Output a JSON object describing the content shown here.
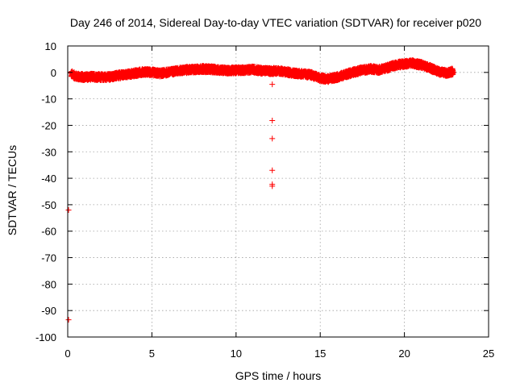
{
  "chart_data": {
    "type": "scatter",
    "title": "Day 246 of 2014, Sidereal Day-to-day VTEC variation (SDTVAR) for receiver p020",
    "xlabel": "GPS time / hours",
    "ylabel": "SDTVAR / TECUs",
    "xlim": [
      0,
      25
    ],
    "ylim": [
      -100,
      10
    ],
    "x_ticks": [
      0,
      5,
      10,
      15,
      20,
      25
    ],
    "y_ticks": [
      10,
      0,
      -10,
      -20,
      -30,
      -40,
      -50,
      -60,
      -70,
      -80,
      -90,
      -100
    ],
    "grid": true,
    "marker": "+",
    "color": "#ff0000",
    "series": [
      {
        "name": "SDTVAR",
        "band": {
          "x": [
            0.2,
            0.5,
            1.0,
            1.5,
            2.0,
            2.5,
            3.0,
            3.5,
            4.0,
            4.5,
            5.0,
            5.5,
            6.0,
            6.5,
            7.0,
            7.5,
            8.0,
            8.5,
            9.0,
            9.5,
            10.0,
            10.5,
            11.0,
            11.5,
            12.0,
            12.5,
            13.0,
            13.5,
            14.0,
            14.5,
            15.0,
            15.5,
            16.0,
            16.5,
            17.0,
            17.5,
            18.0,
            18.5,
            19.0,
            19.5,
            20.0,
            20.5,
            21.0,
            21.5,
            22.0,
            22.5,
            22.9
          ],
          "y_center": [
            -0.5,
            -1.5,
            -1.8,
            -1.6,
            -1.8,
            -1.7,
            -1.2,
            -0.8,
            -0.3,
            0.2,
            0.0,
            -0.4,
            0.1,
            0.6,
            0.9,
            1.1,
            1.3,
            1.2,
            0.9,
            0.7,
            0.8,
            0.9,
            1.1,
            0.7,
            0.5,
            0.6,
            0.1,
            -0.3,
            -0.6,
            -1.0,
            -2.2,
            -2.5,
            -1.8,
            -0.8,
            0.1,
            0.9,
            1.3,
            1.0,
            1.8,
            2.8,
            3.2,
            3.5,
            2.8,
            1.8,
            0.3,
            -0.2,
            0.4
          ],
          "half_width": 1.2
        },
        "outliers": {
          "x": [
            12.15,
            12.15,
            12.15,
            12.15,
            12.15,
            12.15,
            12.15,
            0.05,
            0.05
          ],
          "y": [
            1.0,
            -4.5,
            -18.2,
            -25.0,
            -37.0,
            -42.3,
            -43.0,
            -52.0,
            -93.5
          ]
        }
      }
    ]
  }
}
